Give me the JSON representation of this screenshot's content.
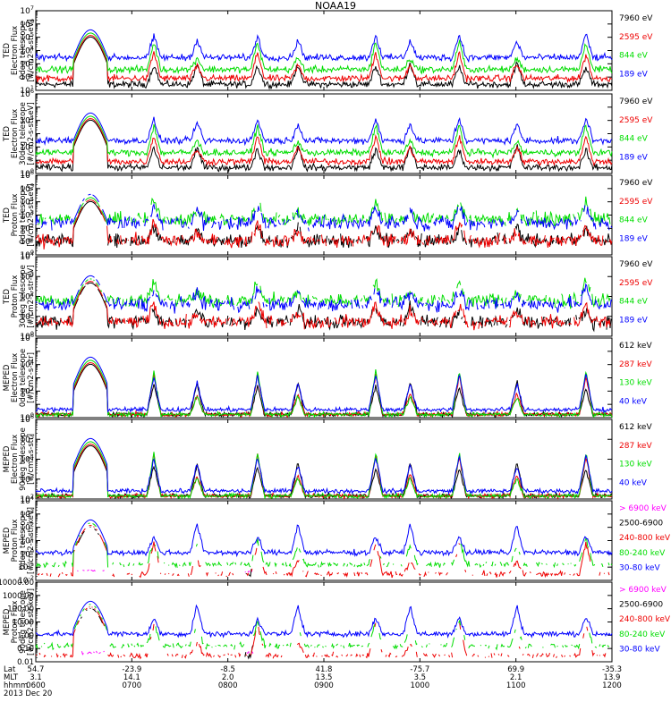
{
  "title": "NOAA19",
  "colors": {
    "black": "#000000",
    "red": "#ee0000",
    "green": "#00dd00",
    "blue": "#0000ff",
    "magenta": "#ff00ff"
  },
  "x_axis": {
    "row_labels": [
      "Lat",
      "MLT",
      "hhmm"
    ],
    "date": "2013 Dec 20",
    "ticks": [
      {
        "lat": "54.7",
        "mlt": "3.1",
        "hhmm": "0600"
      },
      {
        "lat": "-23.9",
        "mlt": "14.1",
        "hhmm": "0700"
      },
      {
        "lat": "-8.5",
        "mlt": "2.0",
        "hhmm": "0800"
      },
      {
        "lat": "41.8",
        "mlt": "13.5",
        "hhmm": "0900"
      },
      {
        "lat": "-75.7",
        "mlt": "3.5",
        "hhmm": "1000"
      },
      {
        "lat": "69.9",
        "mlt": "2.1",
        "hhmm": "1100"
      },
      {
        "lat": "-35.3",
        "mlt": "13.9",
        "hhmm": "1200"
      }
    ]
  },
  "chart_data": [
    {
      "type": "line",
      "panel": 1,
      "ylabel_lines": [
        "TED",
        "Electron Flux",
        "0deg telescope",
        "[#/cm2-s-str-eV]"
      ],
      "log_y": true,
      "ytick_exponents": [
        1,
        2,
        3,
        4,
        5,
        6,
        7
      ],
      "ylim": [
        10,
        10000000
      ],
      "x": [
        "0600",
        "1200"
      ],
      "series": [
        {
          "name": "7960 eV",
          "color": "black"
        },
        {
          "name": "2595 eV",
          "color": "red"
        },
        {
          "name": "844 eV",
          "color": "green"
        },
        {
          "name": "189 eV",
          "color": "blue"
        }
      ]
    },
    {
      "type": "line",
      "panel": 2,
      "ylabel_lines": [
        "TED",
        "Electron Flux",
        "30deg telescope",
        "[#/cm2-s-str-eV]"
      ],
      "log_y": true,
      "ytick_exponents": [
        0,
        2,
        4,
        6
      ],
      "ylim": [
        1,
        1000000
      ],
      "x": [
        "0600",
        "1200"
      ],
      "series": [
        {
          "name": "7960 eV",
          "color": "black"
        },
        {
          "name": "2595 eV",
          "color": "red"
        },
        {
          "name": "844 eV",
          "color": "green"
        },
        {
          "name": "189 eV",
          "color": "blue"
        }
      ]
    },
    {
      "type": "line",
      "panel": 3,
      "ylabel_lines": [
        "TED",
        "Proton Flux",
        "0deg telescope",
        "[#/cm2-s-str-eV]"
      ],
      "log_y": true,
      "ytick_exponents": [
        0,
        1,
        2,
        3,
        4,
        5,
        6
      ],
      "ylim": [
        1,
        1000000
      ],
      "x": [
        "0600",
        "1200"
      ],
      "series": [
        {
          "name": "7960 eV",
          "color": "black"
        },
        {
          "name": "2595 eV",
          "color": "red"
        },
        {
          "name": "844 eV",
          "color": "green"
        },
        {
          "name": "189 eV",
          "color": "blue"
        }
      ]
    },
    {
      "type": "line",
      "panel": 4,
      "ylabel_lines": [
        "TED",
        "Proton Flux",
        "30deg telescope",
        "[#/cm2-s-str-eV]"
      ],
      "log_y": true,
      "ytick_exponents": [
        0,
        1,
        2,
        3,
        4
      ],
      "ylim": [
        1,
        10000
      ],
      "x": [
        "0600",
        "1200"
      ],
      "series": [
        {
          "name": "7960 eV",
          "color": "black"
        },
        {
          "name": "2595 eV",
          "color": "red"
        },
        {
          "name": "844 eV",
          "color": "green"
        },
        {
          "name": "189 eV",
          "color": "blue"
        }
      ]
    },
    {
      "type": "line",
      "panel": 5,
      "ylabel_lines": [
        "MEPED",
        "Electron Flux",
        "0deg telescope",
        "[#/cm2-s-str]"
      ],
      "log_y": true,
      "ytick_exponents": [
        0,
        2,
        4,
        6
      ],
      "ylim": [
        1,
        1000000
      ],
      "x": [
        "0600",
        "1200"
      ],
      "series": [
        {
          "name": "612 keV",
          "color": "black"
        },
        {
          "name": "287 keV",
          "color": "red"
        },
        {
          "name": "130 keV",
          "color": "green"
        },
        {
          "name": "40 keV",
          "color": "blue"
        }
      ]
    },
    {
      "type": "line",
      "panel": 6,
      "ylabel_lines": [
        "MEPED",
        "Electron Flux",
        "90deg telescope",
        "[#/cm2-s-str]"
      ],
      "log_y": true,
      "ytick_exponents": [
        2,
        3,
        4,
        5,
        6
      ],
      "ylim": [
        100,
        1000000
      ],
      "x": [
        "0600",
        "1200"
      ],
      "series": [
        {
          "name": "612 keV",
          "color": "black"
        },
        {
          "name": "287 keV",
          "color": "red"
        },
        {
          "name": "130 keV",
          "color": "green"
        },
        {
          "name": "40 keV",
          "color": "blue"
        }
      ]
    },
    {
      "type": "line",
      "panel": 7,
      "ylabel_lines": [
        "MEPED",
        "Proton Flux",
        "0deg telescope",
        "[#/cm2-s-str-keV]"
      ],
      "log_y": true,
      "ytick_exponents": [
        -2,
        -1,
        0,
        1,
        2,
        3,
        4
      ],
      "ylim": [
        0.01,
        10000
      ],
      "x": [
        "0600",
        "1200"
      ],
      "series": [
        {
          "name": "> 6900 keV",
          "color": "magenta"
        },
        {
          "name": "2500-6900",
          "color": "black"
        },
        {
          "name": "240-800 keV",
          "color": "red"
        },
        {
          "name": "80-240 keV",
          "color": "green"
        },
        {
          "name": "30-80 keV",
          "color": "blue"
        }
      ]
    },
    {
      "type": "line",
      "panel": 8,
      "ylabel_lines": [
        "MEPED",
        "Proton Flux",
        "90deg telescope",
        "[#/cm2-s-str-keV]"
      ],
      "log_y": true,
      "ytick_labels": [
        "0.01",
        "0.10",
        "1.00",
        "10.00",
        "100.00",
        "1000.00",
        "10000.00"
      ],
      "ylim": [
        0.01,
        10000
      ],
      "x": [
        "0600",
        "1200"
      ],
      "series": [
        {
          "name": "> 6900 keV",
          "color": "magenta"
        },
        {
          "name": "2500-6900",
          "color": "black"
        },
        {
          "name": "240-800 keV",
          "color": "red"
        },
        {
          "name": "80-240 keV",
          "color": "green"
        },
        {
          "name": "30-80 keV",
          "color": "blue"
        }
      ]
    }
  ]
}
